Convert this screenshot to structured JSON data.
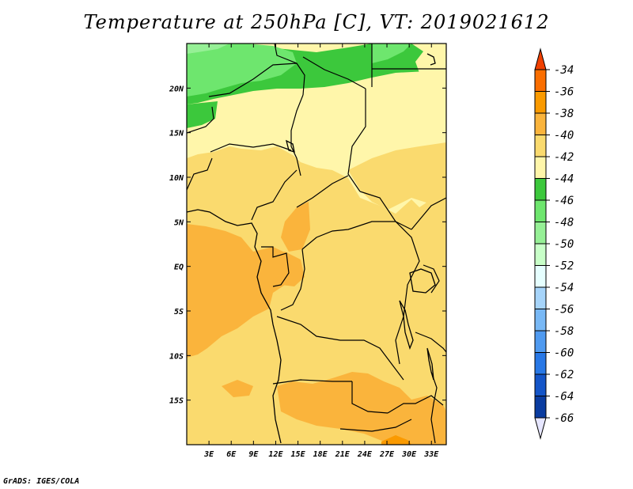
{
  "title": "Temperature at 250hPa [C], VT: 2019021612",
  "credit": "GrADS: IGES/COLA",
  "map": {
    "lon_range": [
      0,
      35
    ],
    "lat_range": [
      -20,
      25
    ],
    "lon_ticks": [
      {
        "value": 3,
        "label": "3E"
      },
      {
        "value": 6,
        "label": "6E"
      },
      {
        "value": 9,
        "label": "9E"
      },
      {
        "value": 12,
        "label": "12E"
      },
      {
        "value": 15,
        "label": "15E"
      },
      {
        "value": 18,
        "label": "18E"
      },
      {
        "value": 21,
        "label": "21E"
      },
      {
        "value": 24,
        "label": "24E"
      },
      {
        "value": 27,
        "label": "27E"
      },
      {
        "value": 30,
        "label": "30E"
      },
      {
        "value": 33,
        "label": "33E"
      }
    ],
    "lat_ticks": [
      {
        "value": 20,
        "label": "20N"
      },
      {
        "value": 15,
        "label": "15N"
      },
      {
        "value": 10,
        "label": "10N"
      },
      {
        "value": 5,
        "label": "5N"
      },
      {
        "value": 0,
        "label": "EQ"
      },
      {
        "value": -5,
        "label": "5S"
      },
      {
        "value": -10,
        "label": "10S"
      },
      {
        "value": -15,
        "label": "15S"
      }
    ]
  },
  "colorbar": {
    "labels": [
      "-34",
      "-36",
      "-38",
      "-40",
      "-42",
      "-44",
      "-46",
      "-48",
      "-50",
      "-52",
      "-54",
      "-56",
      "-58",
      "-60",
      "-62",
      "-64",
      "-66"
    ],
    "colors": [
      "#f04000",
      "#fa6e00",
      "#fa9a00",
      "#fab43c",
      "#fada6e",
      "#fff6aa",
      "#3cc83c",
      "#6ee66e",
      "#96f096",
      "#c8ffc8",
      "#e6ffff",
      "#a6d4fa",
      "#78b8f5",
      "#4f9af0",
      "#2878e6",
      "#1455c8",
      "#0a3ca0",
      "#0a1a78"
    ],
    "top_color": "#f04000",
    "bottom_color": "#e6e6ff"
  }
}
